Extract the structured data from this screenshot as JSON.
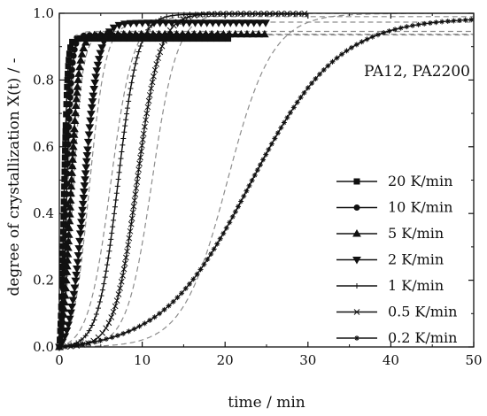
{
  "chart_data": {
    "type": "line",
    "title": "",
    "annotation": "PA12, PA2200",
    "xlabel": "time / min",
    "ylabel": "degree of crystallization X(t) / -",
    "xlim": [
      0,
      50
    ],
    "ylim": [
      0,
      1.0
    ],
    "xticks": [
      0,
      10,
      20,
      30,
      40,
      50
    ],
    "yticks": [
      0.0,
      0.2,
      0.4,
      0.6,
      0.8,
      1.0
    ],
    "xtick_labels": [
      "0",
      "10",
      "20",
      "30",
      "40",
      "50"
    ],
    "ytick_labels": [
      "0.0",
      "0.2",
      "0.4",
      "0.6",
      "0.8",
      "1.0"
    ],
    "grid": false,
    "legend_position": "bottom-right",
    "series": [
      {
        "name": "20 K/min",
        "marker": "square",
        "t_half": 0.55,
        "width": 0.22,
        "x_end": 20.5,
        "model_t_half": 0.65,
        "model_width": 0.24
      },
      {
        "name": "10 K/min",
        "marker": "circle",
        "t_half": 0.85,
        "width": 0.32,
        "x_end": 20.5,
        "model_t_half": 1.0,
        "model_width": 0.35
      },
      {
        "name": "5 K/min",
        "marker": "triangle-up",
        "t_half": 1.35,
        "width": 0.5,
        "x_end": 25,
        "model_t_half": 1.6,
        "model_width": 0.6
      },
      {
        "name": "2 K/min",
        "marker": "triangle-down",
        "t_half": 3.0,
        "width": 0.85,
        "x_end": 25,
        "model_t_half": 3.6,
        "model_width": 1.0
      },
      {
        "name": "1 K/min",
        "marker": "plus",
        "t_half": 7.1,
        "width": 1.2,
        "x_end": 30,
        "model_t_half": 6.2,
        "model_width": 1.35
      },
      {
        "name": "0.5 K/min",
        "marker": "cross",
        "t_half": 9.4,
        "width": 1.35,
        "x_end": 30,
        "model_t_half": 11.2,
        "model_width": 1.5
      },
      {
        "name": "0.2 K/min",
        "marker": "star",
        "t_half": 23.0,
        "width": 5.3,
        "x_end": 50,
        "model_t_half": 20.3,
        "model_width": 2.7
      }
    ],
    "colors": {
      "series": "#111111",
      "model": "#8c8c8c",
      "axes": "#111111"
    }
  }
}
